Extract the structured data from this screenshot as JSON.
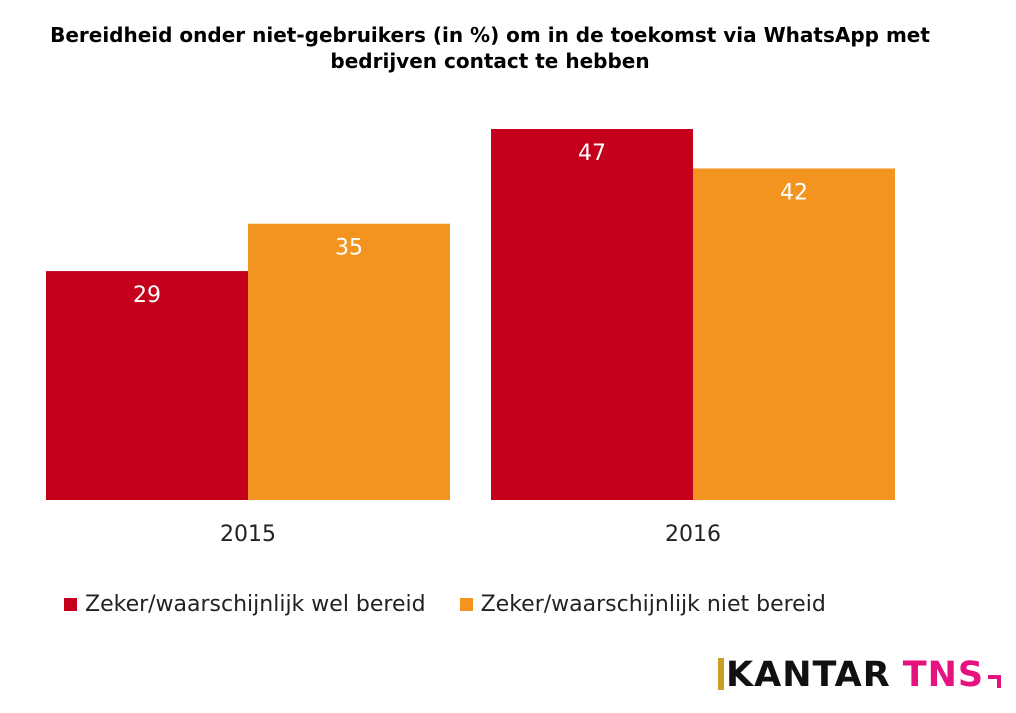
{
  "chart_data": {
    "type": "bar",
    "title": "Bereidheid onder niet-gebruikers (in %) om in de toekomst via WhatsApp met bedrijven contact te hebben",
    "categories": [
      "2015",
      "2016"
    ],
    "series": [
      {
        "name": "Zeker/waarschijnlijk wel bereid",
        "values": [
          29,
          47
        ],
        "color": "#c4001a"
      },
      {
        "name": "Zeker/waarschijnlijk niet bereid",
        "values": [
          35,
          42
        ],
        "color": "#f39320"
      }
    ],
    "ylim": [
      0,
      47
    ],
    "xlabel": "",
    "ylabel": "",
    "legend": "bottom",
    "grid": false
  },
  "logo": {
    "part1": "KANTAR",
    "part2": "TNS"
  }
}
